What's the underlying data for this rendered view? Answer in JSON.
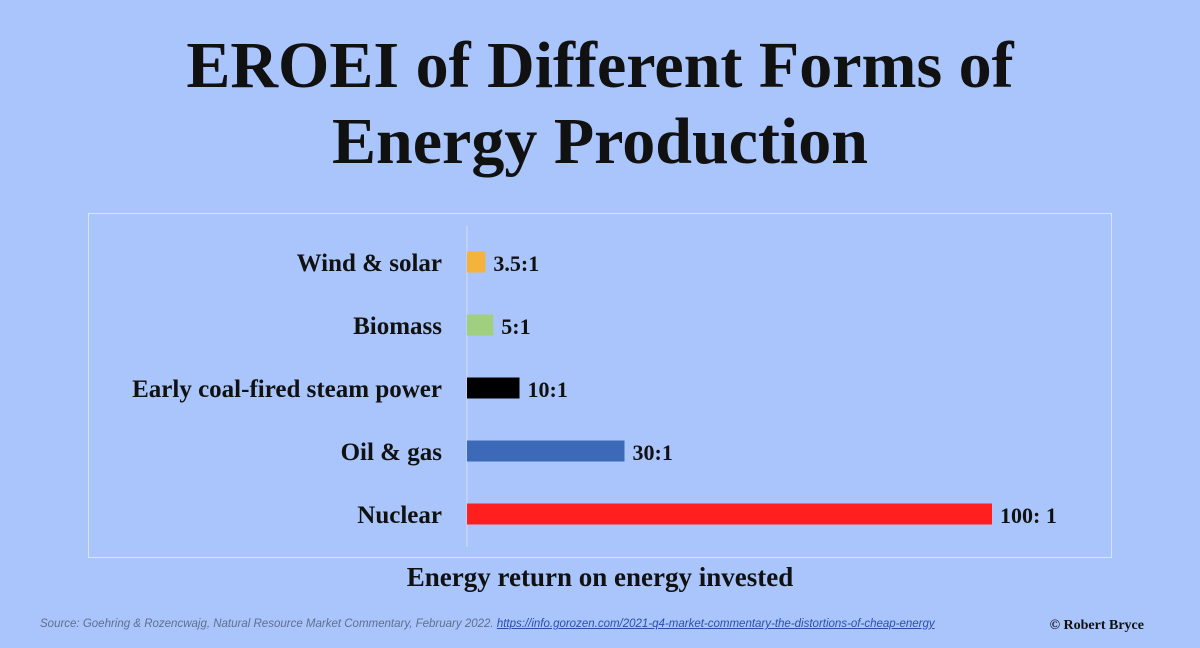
{
  "chart_data": {
    "type": "bar",
    "orientation": "horizontal",
    "title_lines": [
      "EROEI of Different Forms of",
      "Energy Production"
    ],
    "xlabel": "Energy return on energy invested",
    "ylabel": "",
    "categories": [
      "Wind & solar",
      "Biomass",
      "Early coal-fired steam power",
      "Oil & gas",
      "Nuclear"
    ],
    "values": [
      3.5,
      5,
      10,
      30,
      100
    ],
    "value_labels": [
      "3.5:1",
      "5:1",
      "10:1",
      "30:1",
      "100: 1"
    ],
    "colors": [
      "#f4b33a",
      "#9fcf7f",
      "#000000",
      "#3d6ab8",
      "#ff1f1f"
    ],
    "xlim": [
      0,
      100
    ],
    "grid": false,
    "legend": "none"
  },
  "footer": {
    "source_prefix": "Source: Goehring & Rozencwajg, Natural Resource Market Commentary, February 2022.",
    "source_url": "https://info.gorozen.com/2021-q4-market-commentary-the-distortions-of-cheap-energy",
    "copyright": "© Robert Bryce"
  },
  "colors": {
    "background": "#a9c5fb"
  }
}
